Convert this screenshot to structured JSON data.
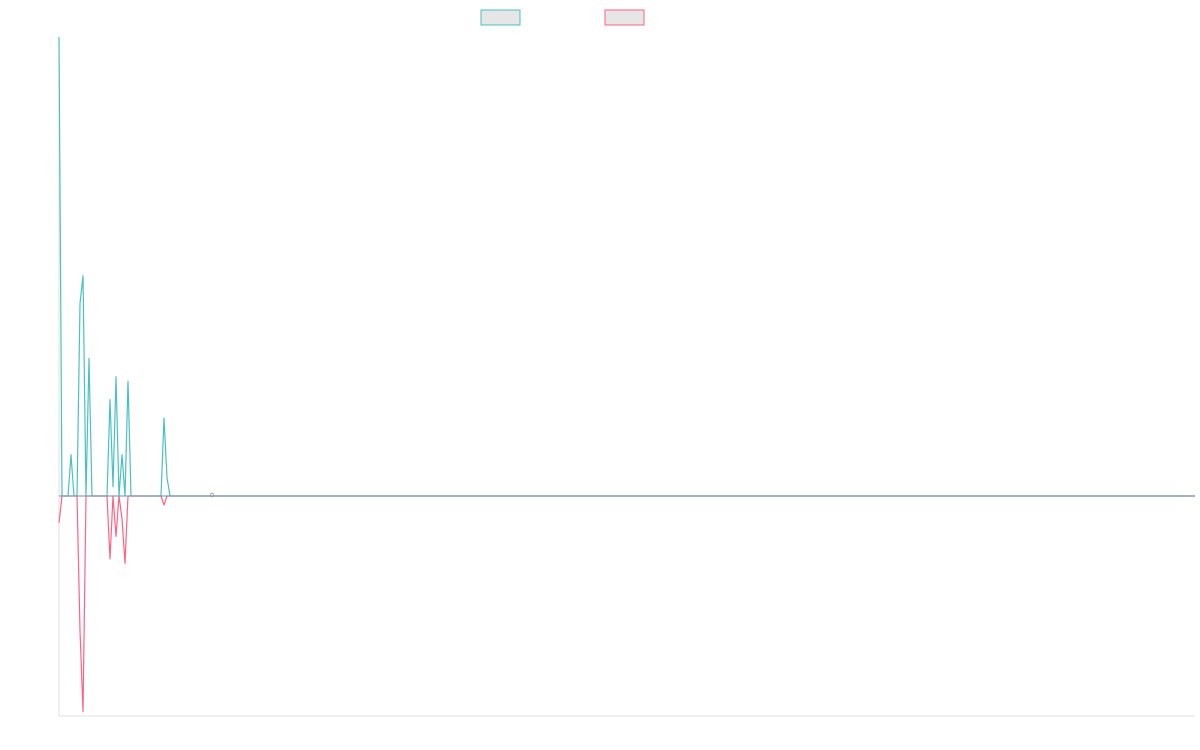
{
  "chart_data": {
    "type": "line",
    "title": "",
    "xlabel": "",
    "ylabel": "",
    "legend_position": "top-center",
    "grid": false,
    "axes_visible": false,
    "x_index_range": [
      0,
      189
    ],
    "ylim": [
      -0.49,
      1.0
    ],
    "series": [
      {
        "name": "",
        "color": "#4bc0c0",
        "fill": "#e6e6e6",
        "values": [
          1.0,
          0.0,
          0.0,
          0.0,
          0.09,
          0.0,
          0.0,
          0.42,
          0.48,
          0.0,
          0.3,
          0.0,
          0.0,
          0.0,
          0.0,
          0.0,
          0.0,
          0.21,
          0.02,
          0.26,
          0.0,
          0.09,
          0.0,
          0.25,
          0.0,
          0.0,
          0.0,
          0.0,
          0.0,
          0.0,
          0.0,
          0.0,
          0.0,
          0.0,
          0.0,
          0.17,
          0.04,
          0.0,
          0.0,
          0.0,
          0.0
        ]
      },
      {
        "name": "",
        "color": "#ff6384",
        "fill": "#e6e6e6",
        "values": [
          -0.06,
          0.0,
          0.0,
          0.0,
          0.0,
          0.0,
          0.0,
          -0.3,
          -0.48,
          0.0,
          0.0,
          0.0,
          0.0,
          0.0,
          0.0,
          0.0,
          0.0,
          -0.14,
          0.0,
          -0.09,
          0.0,
          -0.05,
          -0.15,
          0.0,
          0.0,
          0.0,
          0.0,
          0.0,
          0.0,
          0.0,
          0.0,
          0.0,
          0.0,
          0.0,
          0.0,
          -0.02,
          0.0,
          0.0,
          0.0,
          0.0,
          0.0
        ]
      }
    ],
    "baseline_color": "#6b8fb5"
  }
}
